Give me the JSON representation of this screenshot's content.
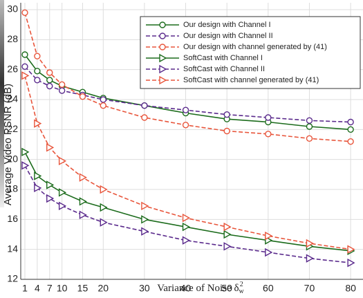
{
  "chart_data": {
    "type": "line",
    "y_label": "Average Video PSNR (dB)",
    "x_label": "Variance of Noise δ",
    "x_label_sub": "w",
    "x_label_sup": "2",
    "x": [
      1,
      4,
      7,
      10,
      15,
      20,
      30,
      40,
      50,
      60,
      70,
      80
    ],
    "series": [
      {
        "name": "Our design with Channel I",
        "color": "#1b6b1b",
        "marker": "circle",
        "dash": false,
        "values": [
          27.0,
          25.9,
          25.3,
          24.9,
          24.5,
          24.1,
          23.6,
          23.1,
          22.7,
          22.5,
          22.2,
          22.0
        ]
      },
      {
        "name": "Our design with Channel II",
        "color": "#5a2a8c",
        "marker": "circle",
        "dash": true,
        "values": [
          26.2,
          25.3,
          24.9,
          24.6,
          24.3,
          24.0,
          23.6,
          23.3,
          23.0,
          22.8,
          22.6,
          22.5
        ]
      },
      {
        "name": "Our design with channel generated by (41)",
        "color": "#e8553b",
        "marker": "circle",
        "dash": true,
        "values": [
          29.8,
          26.9,
          25.8,
          25.0,
          24.2,
          23.6,
          22.8,
          22.3,
          21.9,
          21.7,
          21.4,
          21.2
        ]
      },
      {
        "name": "SoftCast with Channel I",
        "color": "#1b6b1b",
        "marker": "triangle",
        "dash": false,
        "values": [
          20.5,
          18.9,
          18.3,
          17.8,
          17.2,
          16.8,
          16.0,
          15.5,
          15.0,
          14.6,
          14.2,
          13.9
        ]
      },
      {
        "name": "SoftCast with Channel II",
        "color": "#5a2a8c",
        "marker": "triangle",
        "dash": true,
        "values": [
          19.6,
          18.1,
          17.4,
          16.9,
          16.3,
          15.8,
          15.2,
          14.6,
          14.2,
          13.8,
          13.4,
          13.1
        ]
      },
      {
        "name": "SoftCast with channel generated by (41)",
        "color": "#e8553b",
        "marker": "triangle",
        "dash": true,
        "values": [
          25.6,
          22.4,
          20.8,
          19.9,
          18.8,
          18.0,
          16.9,
          16.1,
          15.5,
          14.9,
          14.4,
          14.0
        ]
      }
    ],
    "xlim": [
      0,
      83
    ],
    "xticks": [
      1,
      4,
      7,
      10,
      15,
      20,
      30,
      40,
      50,
      60,
      70,
      80
    ],
    "ylim": [
      12,
      30
    ],
    "yticks": [
      12,
      14,
      16,
      18,
      20,
      22,
      24,
      26,
      28,
      30
    ],
    "grid": true,
    "legend": "upper right"
  }
}
